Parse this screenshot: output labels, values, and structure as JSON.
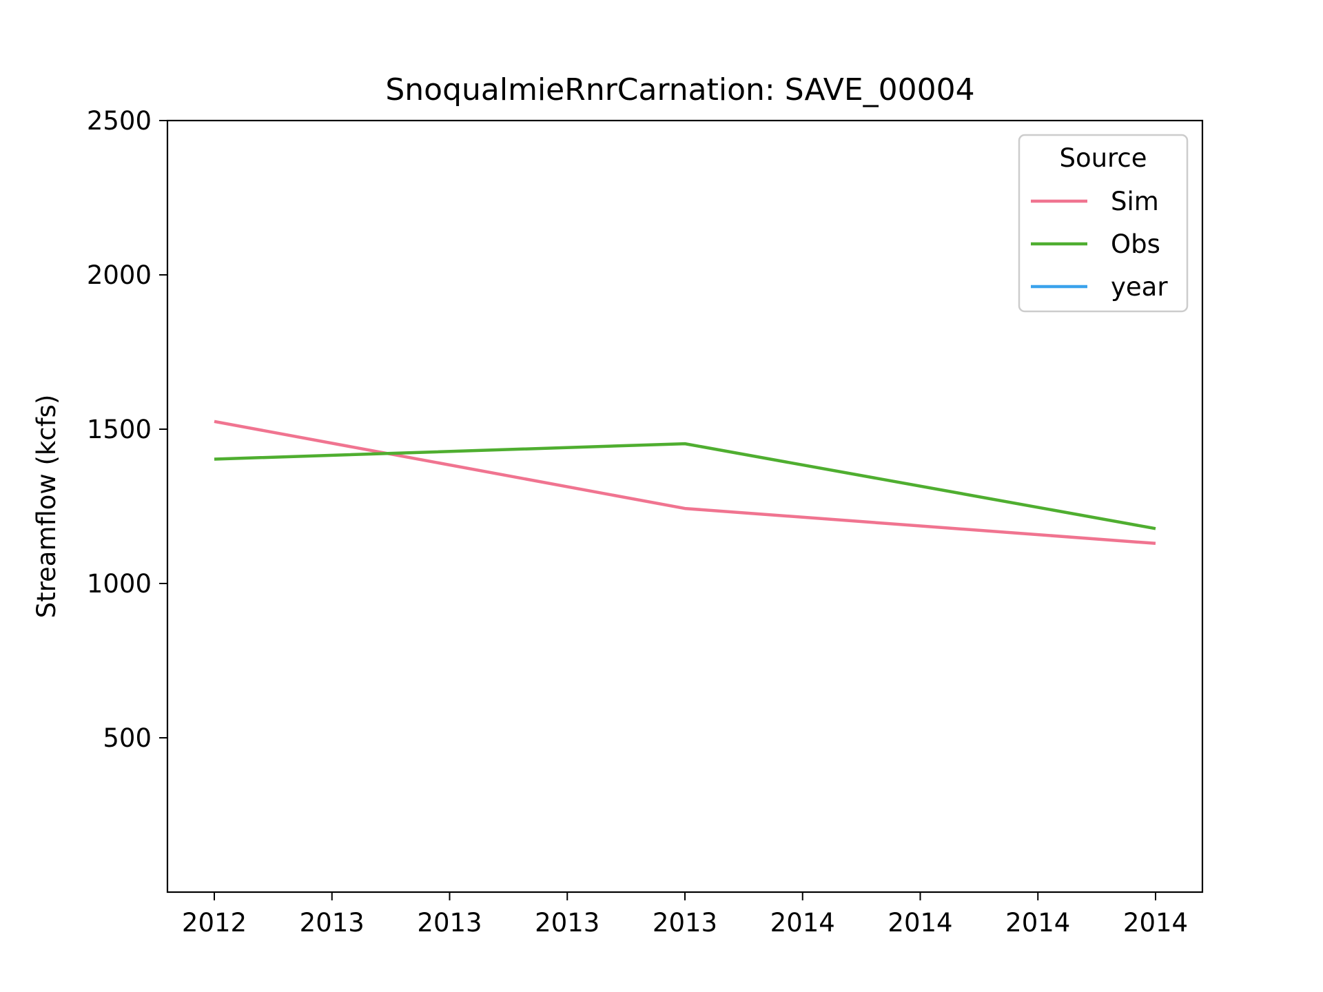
{
  "chart_data": {
    "type": "line",
    "title": "SnoqualmieRnrCarnation: SAVE_00004",
    "xlabel": "",
    "ylabel": "Streamflow (kcfs)",
    "x_tick_labels": [
      "2012",
      "2013",
      "2013",
      "2013",
      "2013",
      "2014",
      "2014",
      "2014",
      "2014"
    ],
    "x_positions": [
      0,
      1,
      2,
      3,
      4,
      5,
      6,
      7,
      8
    ],
    "yticks": [
      500,
      1000,
      1500,
      2000,
      2500
    ],
    "ylim": [
      0,
      2500
    ],
    "legend": {
      "title": "Source",
      "placement": "upper right"
    },
    "series": [
      {
        "name": "Sim",
        "color": "#f07490",
        "x": [
          0,
          4,
          8
        ],
        "values": [
          1525,
          1243,
          1130
        ]
      },
      {
        "name": "Obs",
        "color": "#4fae30",
        "x": [
          0,
          4,
          8
        ],
        "values": [
          1403,
          1453,
          1178
        ]
      },
      {
        "name": "year",
        "color": "#3ba3ec",
        "x": [],
        "values": []
      }
    ]
  }
}
